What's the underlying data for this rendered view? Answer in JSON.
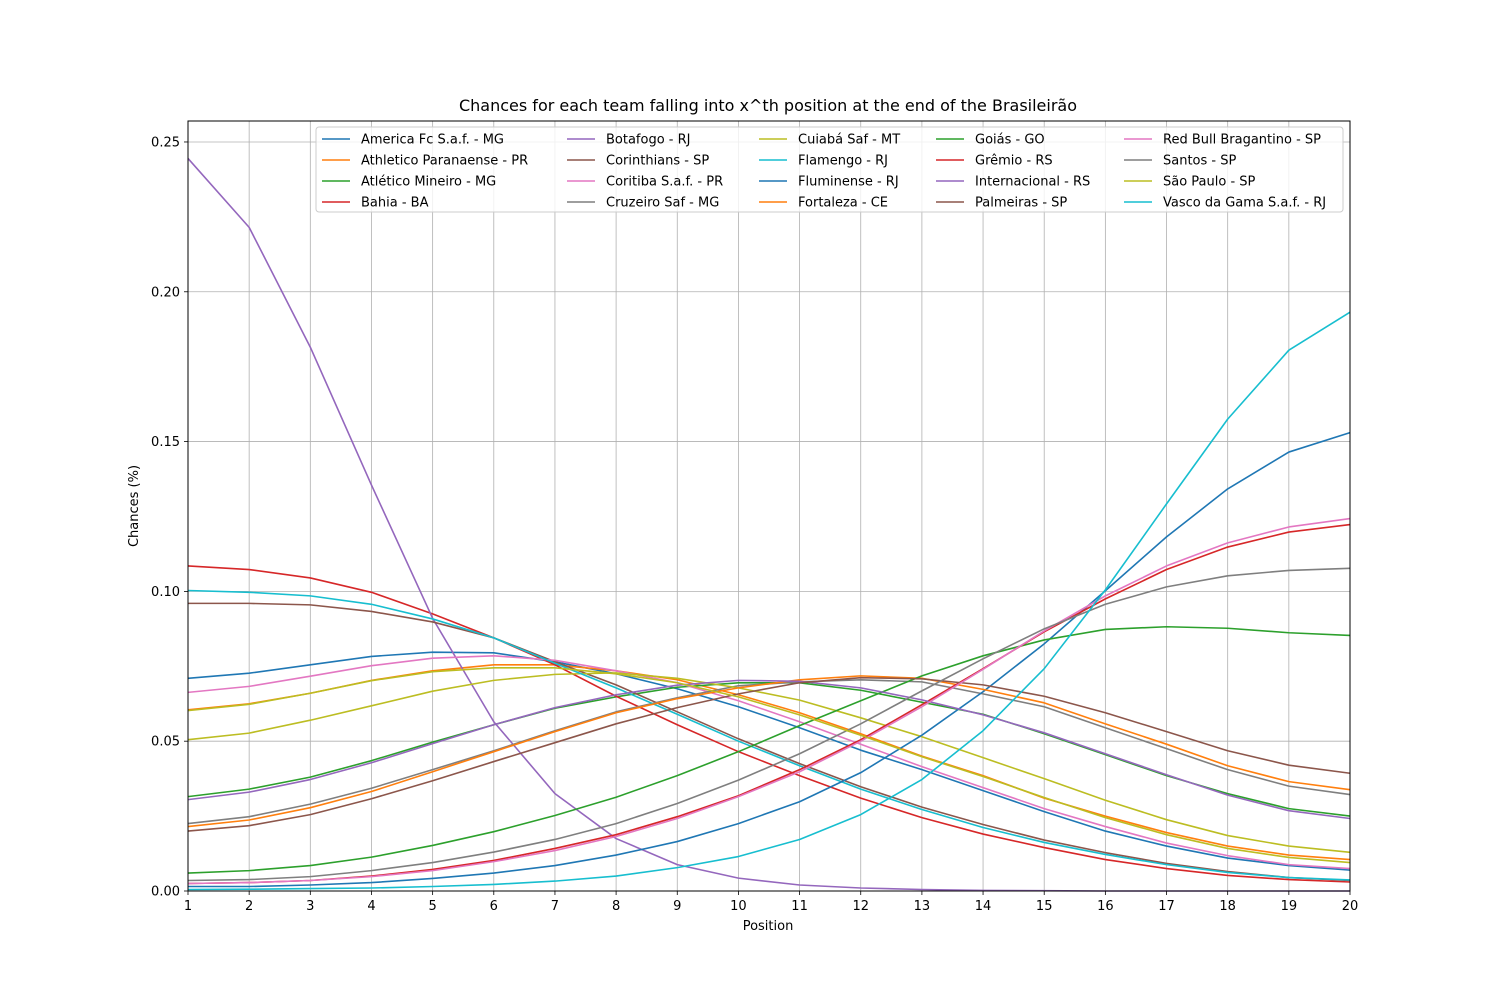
{
  "chart_data": {
    "type": "line",
    "title": "Chances for each team falling into x^th position at the end of the Brasileirão",
    "xlabel": "Position",
    "ylabel": "Chances (%)",
    "xlim": [
      1,
      20
    ],
    "ylim": [
      0,
      0.257
    ],
    "x": [
      1,
      2,
      3,
      4,
      5,
      6,
      7,
      8,
      9,
      10,
      11,
      12,
      13,
      14,
      15,
      16,
      17,
      18,
      19,
      20
    ],
    "x_ticks": [
      "1",
      "2",
      "3",
      "4",
      "5",
      "6",
      "7",
      "8",
      "9",
      "10",
      "11",
      "12",
      "13",
      "14",
      "15",
      "16",
      "17",
      "18",
      "19",
      "20"
    ],
    "y_ticks": [
      0.0,
      0.05,
      0.1,
      0.15,
      0.2,
      0.25
    ],
    "y_tick_labels": [
      "0.00",
      "0.05",
      "0.10",
      "0.15",
      "0.20",
      "0.25"
    ],
    "grid": true,
    "legend_position": "top-right",
    "legend_columns": 5,
    "series": [
      {
        "name": "America Fc S.a.f. - MG",
        "color": "#1f77b4",
        "values": [
          0.071,
          0.0727,
          0.0755,
          0.0783,
          0.0797,
          0.0795,
          0.0765,
          0.0725,
          0.0675,
          0.0615,
          0.0545,
          0.047,
          0.0405,
          0.0335,
          0.0265,
          0.02,
          0.015,
          0.011,
          0.0085,
          0.007
        ]
      },
      {
        "name": "Athletico Paranaense - PR",
        "color": "#ff7f0e",
        "values": [
          0.0605,
          0.0625,
          0.066,
          0.0703,
          0.0735,
          0.0755,
          0.0755,
          0.0735,
          0.0705,
          0.0655,
          0.0595,
          0.0525,
          0.045,
          0.0385,
          0.031,
          0.025,
          0.0195,
          0.015,
          0.012,
          0.0105
        ]
      },
      {
        "name": "Atlético Mineiro - MG",
        "color": "#2ca02c",
        "values": [
          0.0315,
          0.034,
          0.038,
          0.0435,
          0.0497,
          0.0555,
          0.061,
          0.0648,
          0.068,
          0.0695,
          0.0695,
          0.067,
          0.063,
          0.059,
          0.0525,
          0.0455,
          0.0385,
          0.0325,
          0.0275,
          0.025
        ]
      },
      {
        "name": "Bahia - BA",
        "color": "#d62728",
        "values": [
          0.1085,
          0.1073,
          0.1045,
          0.0997,
          0.0925,
          0.0845,
          0.0755,
          0.065,
          0.0555,
          0.0465,
          0.0385,
          0.031,
          0.0245,
          0.019,
          0.0145,
          0.0105,
          0.0075,
          0.0052,
          0.0038,
          0.003
        ]
      },
      {
        "name": "Botafogo - RJ",
        "color": "#9467bd",
        "values": [
          0.2445,
          0.2215,
          0.1815,
          0.1355,
          0.091,
          0.0565,
          0.0325,
          0.0175,
          0.0088,
          0.0043,
          0.002,
          0.001,
          0.0005,
          0.0002,
          0.0001,
          0.0,
          0.0,
          0.0,
          0.0,
          0.0
        ]
      },
      {
        "name": "Corinthians - SP",
        "color": "#8c564b",
        "values": [
          0.096,
          0.096,
          0.0955,
          0.0933,
          0.0898,
          0.0845,
          0.0765,
          0.0688,
          0.0598,
          0.0508,
          0.0425,
          0.0348,
          0.028,
          0.0222,
          0.017,
          0.0128,
          0.0092,
          0.0065,
          0.0045,
          0.0035
        ]
      },
      {
        "name": "Coritiba S.a.f. - PR",
        "color": "#e377c2",
        "values": [
          0.0663,
          0.0683,
          0.0717,
          0.0752,
          0.0777,
          0.0785,
          0.077,
          0.0735,
          0.0695,
          0.0635,
          0.0565,
          0.049,
          0.0415,
          0.0345,
          0.0275,
          0.0215,
          0.016,
          0.0118,
          0.0088,
          0.0075
        ]
      },
      {
        "name": "Cruzeiro Saf - MG",
        "color": "#7f7f7f",
        "values": [
          0.0225,
          0.0248,
          0.029,
          0.0343,
          0.0405,
          0.0468,
          0.0535,
          0.0598,
          0.0645,
          0.0685,
          0.0698,
          0.0705,
          0.0698,
          0.0658,
          0.0615,
          0.0545,
          0.0475,
          0.0405,
          0.035,
          0.0322
        ]
      },
      {
        "name": "Cuiabá Saf - MT",
        "color": "#bcbd22",
        "values": [
          0.0505,
          0.0527,
          0.057,
          0.0618,
          0.0667,
          0.0703,
          0.0723,
          0.0728,
          0.071,
          0.0678,
          0.0637,
          0.0578,
          0.0515,
          0.0445,
          0.0375,
          0.0303,
          0.0238,
          0.0185,
          0.015,
          0.0129
        ]
      },
      {
        "name": "Flamengo - RJ",
        "color": "#17becf",
        "values": [
          0.1003,
          0.0997,
          0.0985,
          0.0957,
          0.0908,
          0.0845,
          0.076,
          0.0678,
          0.059,
          0.05,
          0.0418,
          0.034,
          0.0272,
          0.0212,
          0.0162,
          0.0122,
          0.0088,
          0.0062,
          0.0045,
          0.0037
        ]
      },
      {
        "name": "Fluminense - RJ",
        "color": "#1f77b4",
        "values": [
          0.0015,
          0.0015,
          0.002,
          0.0028,
          0.0042,
          0.006,
          0.0085,
          0.012,
          0.0165,
          0.0225,
          0.0298,
          0.0395,
          0.052,
          0.0665,
          0.0825,
          0.1002,
          0.1182,
          0.1342,
          0.1465,
          0.153
        ]
      },
      {
        "name": "Fortaleza - CE",
        "color": "#ff7f0e",
        "values": [
          0.0215,
          0.0237,
          0.0278,
          0.0332,
          0.0398,
          0.0465,
          0.0532,
          0.0595,
          0.0642,
          0.0678,
          0.0705,
          0.0718,
          0.071,
          0.0673,
          0.0628,
          0.0558,
          0.049,
          0.0418,
          0.0365,
          0.0338
        ]
      },
      {
        "name": "Goiás - GO",
        "color": "#2ca02c",
        "values": [
          0.006,
          0.0068,
          0.0085,
          0.0113,
          0.0152,
          0.0198,
          0.0252,
          0.0313,
          0.0385,
          0.0465,
          0.0552,
          0.0635,
          0.0718,
          0.0785,
          0.0838,
          0.0873,
          0.0882,
          0.0877,
          0.0862,
          0.0853
        ]
      },
      {
        "name": "Grêmio - RS",
        "color": "#d62728",
        "values": [
          0.0025,
          0.0028,
          0.0035,
          0.005,
          0.0072,
          0.0102,
          0.0142,
          0.0188,
          0.0248,
          0.0318,
          0.0405,
          0.0505,
          0.0622,
          0.0742,
          0.0865,
          0.0975,
          0.1073,
          0.1148,
          0.1198,
          0.1223
        ]
      },
      {
        "name": "Internacional - RS",
        "color": "#9467bd",
        "values": [
          0.0305,
          0.033,
          0.0372,
          0.0428,
          0.0492,
          0.0555,
          0.0612,
          0.0655,
          0.0687,
          0.0703,
          0.07,
          0.0678,
          0.0638,
          0.0588,
          0.0528,
          0.0458,
          0.0388,
          0.032,
          0.0268,
          0.0242
        ]
      },
      {
        "name": "Palmeiras - SP",
        "color": "#8c564b",
        "values": [
          0.02,
          0.0218,
          0.0255,
          0.0308,
          0.0368,
          0.0432,
          0.0495,
          0.0558,
          0.0612,
          0.0658,
          0.0695,
          0.0712,
          0.0708,
          0.0688,
          0.065,
          0.0595,
          0.0532,
          0.0468,
          0.042,
          0.0393
        ]
      },
      {
        "name": "Red Bull Bragantino - SP",
        "color": "#e377c2",
        "values": [
          0.0025,
          0.0028,
          0.0035,
          0.0048,
          0.0068,
          0.0098,
          0.0135,
          0.0182,
          0.0242,
          0.0315,
          0.0398,
          0.05,
          0.0615,
          0.074,
          0.0868,
          0.0985,
          0.1085,
          0.1162,
          0.1215,
          0.1243
        ]
      },
      {
        "name": "Santos - SP",
        "color": "#7f7f7f",
        "values": [
          0.0035,
          0.0038,
          0.0048,
          0.0068,
          0.0095,
          0.013,
          0.0172,
          0.0225,
          0.0292,
          0.037,
          0.0458,
          0.0558,
          0.0668,
          0.0775,
          0.0875,
          0.0957,
          0.1015,
          0.1052,
          0.107,
          0.1077
        ]
      },
      {
        "name": "São Paulo - SP",
        "color": "#bcbd22",
        "values": [
          0.0602,
          0.0623,
          0.066,
          0.0702,
          0.0732,
          0.0745,
          0.0745,
          0.0725,
          0.0695,
          0.0648,
          0.0588,
          0.052,
          0.0448,
          0.0382,
          0.0312,
          0.0245,
          0.0188,
          0.0142,
          0.0112,
          0.0095
        ]
      },
      {
        "name": "Vasco da Gama S.a.f. - RJ",
        "color": "#17becf",
        "values": [
          0.0005,
          0.0006,
          0.0008,
          0.001,
          0.0015,
          0.0022,
          0.0033,
          0.005,
          0.0078,
          0.0115,
          0.0172,
          0.0255,
          0.0372,
          0.0535,
          0.0742,
          0.1005,
          0.1292,
          0.1575,
          0.1805,
          0.1932
        ]
      }
    ]
  }
}
